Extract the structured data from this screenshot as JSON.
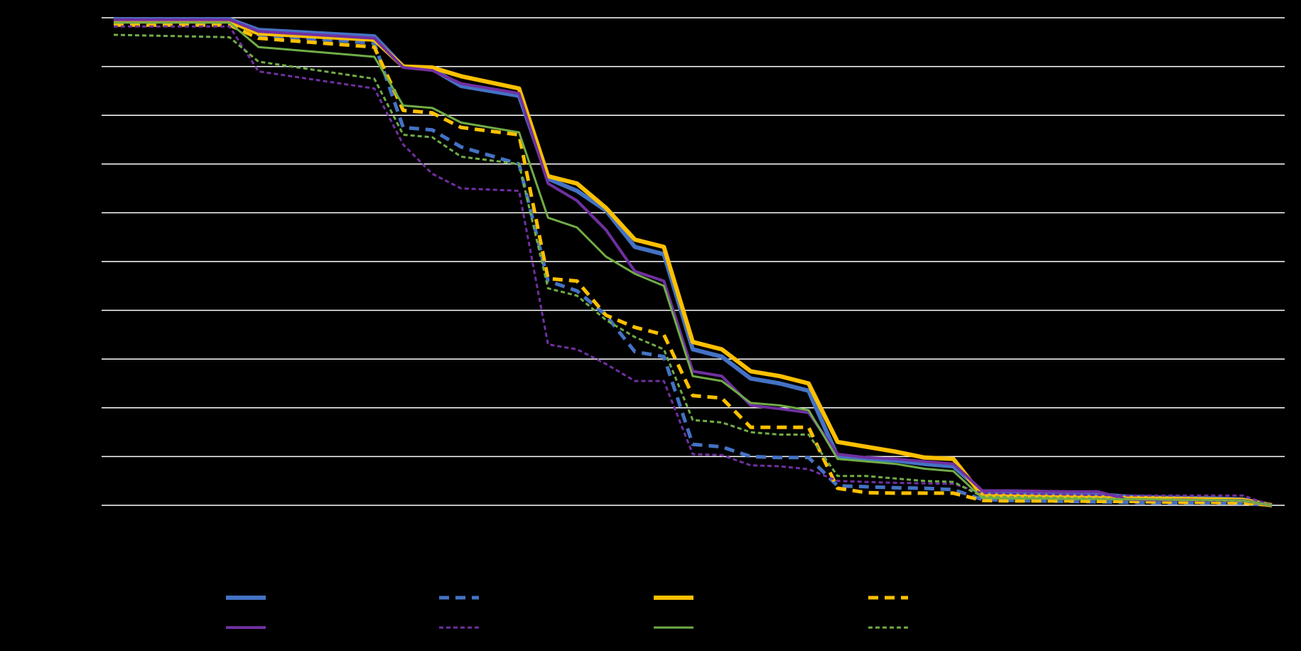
{
  "chart_data": {
    "type": "line",
    "title": "",
    "xlabel": "",
    "ylabel": "",
    "ylim": [
      0,
      100
    ],
    "xlim": [
      0,
      40
    ],
    "grid": true,
    "legend_position": "bottom",
    "yticks": [
      0,
      10,
      20,
      30,
      40,
      50,
      60,
      70,
      80,
      90,
      100
    ],
    "x": [
      0,
      4,
      5,
      9,
      10,
      11,
      12,
      14,
      15,
      16,
      17,
      18,
      19,
      20,
      21,
      22,
      23,
      24,
      25,
      26,
      27,
      28,
      29,
      30,
      31,
      32,
      33,
      34,
      35,
      36,
      37,
      38,
      39,
      40
    ],
    "series": [
      {
        "color": "#4472C4",
        "dash": "solid",
        "width": 6,
        "values": [
          99.7,
          99.7,
          97.5,
          96.2,
          90.0,
          89.5,
          86.0,
          84.0,
          67.0,
          64.5,
          60.5,
          53.0,
          51.5,
          32.0,
          30.5,
          26.0,
          25.0,
          23.5,
          10.0,
          9.5,
          9.2,
          8.5,
          8.0,
          2.8,
          2.6,
          2.4,
          2.3,
          2.2,
          1.8,
          1.6,
          1.5,
          1.4,
          1.2,
          0.0
        ]
      },
      {
        "color": "#4472C4",
        "dash": "dashed",
        "width": 5,
        "values": [
          99.5,
          99.5,
          96.5,
          94.8,
          77.5,
          77.0,
          73.5,
          70.0,
          46.0,
          44.0,
          39.0,
          31.5,
          30.5,
          12.5,
          12.0,
          10.0,
          9.8,
          9.8,
          4.0,
          3.8,
          3.6,
          3.5,
          3.2,
          1.2,
          1.0,
          0.9,
          0.8,
          0.7,
          0.6,
          0.5,
          0.5,
          0.5,
          0.4,
          0.0
        ]
      },
      {
        "color": "#FFC000",
        "dash": "solid",
        "width": 6,
        "values": [
          99.3,
          99.3,
          96.8,
          95.5,
          90.0,
          89.8,
          88.0,
          85.5,
          67.5,
          66.0,
          61.0,
          54.5,
          53.0,
          33.5,
          32.0,
          27.5,
          26.5,
          25.0,
          13.0,
          12.0,
          11.0,
          9.8,
          9.5,
          2.0,
          1.9,
          1.8,
          1.7,
          1.6,
          1.5,
          1.4,
          1.3,
          1.2,
          1.1,
          0.0
        ]
      },
      {
        "color": "#FFC000",
        "dash": "dashed",
        "width": 5,
        "values": [
          98.5,
          98.5,
          95.8,
          94.0,
          81.0,
          80.5,
          77.5,
          76.0,
          46.5,
          46.0,
          39.0,
          36.5,
          35.0,
          22.5,
          22.0,
          16.0,
          16.0,
          16.0,
          3.5,
          2.6,
          2.5,
          2.5,
          2.5,
          1.0,
          0.9,
          0.9,
          0.9,
          0.8,
          0.8,
          0.7,
          0.6,
          0.6,
          0.5,
          0.0
        ]
      },
      {
        "color": "#7030A0",
        "dash": "solid",
        "width": 4,
        "values": [
          99.6,
          99.6,
          97.2,
          95.8,
          89.8,
          89.2,
          86.5,
          84.5,
          66.0,
          62.5,
          56.5,
          48.0,
          46.0,
          27.5,
          26.5,
          20.5,
          19.8,
          19.0,
          10.5,
          9.8,
          9.5,
          9.0,
          8.5,
          3.0,
          3.0,
          2.9,
          2.8,
          2.8,
          1.2,
          1.1,
          1.1,
          1.0,
          1.0,
          0.0
        ]
      },
      {
        "color": "#7030A0",
        "dash": "dotted",
        "width": 3,
        "values": [
          98.2,
          98.2,
          89.0,
          85.5,
          74.0,
          68.0,
          65.0,
          64.5,
          33.0,
          32.0,
          29.0,
          25.5,
          25.5,
          10.5,
          10.3,
          8.2,
          8.0,
          7.4,
          5.0,
          4.8,
          4.6,
          4.5,
          4.4,
          2.5,
          2.4,
          2.3,
          2.2,
          2.1,
          2.0,
          2.0,
          2.0,
          2.0,
          2.0,
          0.0
        ]
      },
      {
        "color": "#70AD47",
        "dash": "solid",
        "width": 3,
        "values": [
          99.0,
          99.0,
          94.0,
          92.0,
          82.0,
          81.5,
          78.5,
          76.5,
          59.0,
          57.0,
          51.0,
          47.5,
          45.0,
          26.5,
          25.5,
          21.0,
          20.5,
          19.5,
          9.5,
          9.0,
          8.5,
          7.5,
          7.0,
          1.5,
          1.4,
          1.4,
          1.3,
          1.3,
          1.2,
          1.2,
          1.1,
          1.1,
          1.0,
          0.0
        ]
      },
      {
        "color": "#70AD47",
        "dash": "dotted",
        "width": 3,
        "values": [
          96.5,
          96.0,
          91.0,
          87.5,
          76.0,
          75.5,
          71.5,
          70.0,
          44.5,
          43.0,
          38.0,
          34.5,
          32.0,
          17.5,
          17.0,
          15.0,
          14.5,
          14.5,
          6.0,
          6.0,
          5.5,
          5.0,
          4.8,
          1.8,
          1.7,
          1.6,
          1.5,
          1.4,
          1.3,
          1.2,
          1.1,
          1.0,
          0.9,
          0.0
        ]
      }
    ]
  }
}
